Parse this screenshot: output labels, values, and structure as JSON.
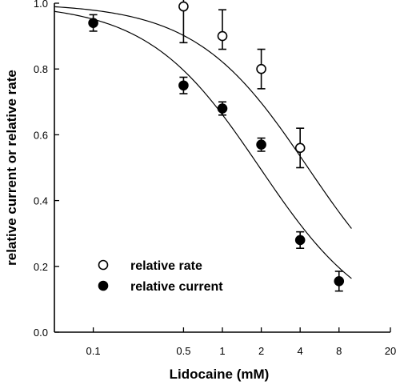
{
  "chart_data": {
    "type": "scatter",
    "title": "",
    "xlabel": "Lidocaine (mM)",
    "ylabel": "relative current or relative rate",
    "xscale": "log",
    "xlim": [
      0.05,
      20
    ],
    "ylim": [
      0.0,
      1.0
    ],
    "x_ticks": [
      0.1,
      0.5,
      1,
      2,
      4,
      8,
      20
    ],
    "x_tick_labels": [
      "0.1",
      "0.5",
      "1",
      "2",
      "4",
      "8",
      "20"
    ],
    "y_ticks": [
      0.0,
      0.2,
      0.4,
      0.6,
      0.8,
      1.0
    ],
    "y_tick_labels": [
      "0.0",
      "0.2",
      "0.4",
      "0.6",
      "0.8",
      "1.0"
    ],
    "legend_position": "lower-left",
    "series": [
      {
        "name": "relative rate",
        "marker": "open-circle",
        "x": [
          0.5,
          1,
          2,
          4
        ],
        "y": [
          0.99,
          0.9,
          0.8,
          0.56
        ],
        "err_plus": [
          0.11,
          0.08,
          0.06,
          0.06
        ],
        "err_minus": [
          0.11,
          0.04,
          0.06,
          0.06
        ],
        "fit": {
          "ic50": 4.6,
          "hill": 1.0
        }
      },
      {
        "name": "relative current",
        "marker": "filled-circle",
        "x": [
          0.1,
          0.5,
          1,
          2,
          4,
          8
        ],
        "y": [
          0.94,
          0.75,
          0.68,
          0.57,
          0.28,
          0.155
        ],
        "err_plus": [
          0.025,
          0.025,
          0.02,
          0.02,
          0.025,
          0.03
        ],
        "err_minus": [
          0.025,
          0.025,
          0.02,
          0.02,
          0.025,
          0.03
        ],
        "fit": {
          "ic50": 1.95,
          "hill": 1.0
        }
      }
    ]
  }
}
